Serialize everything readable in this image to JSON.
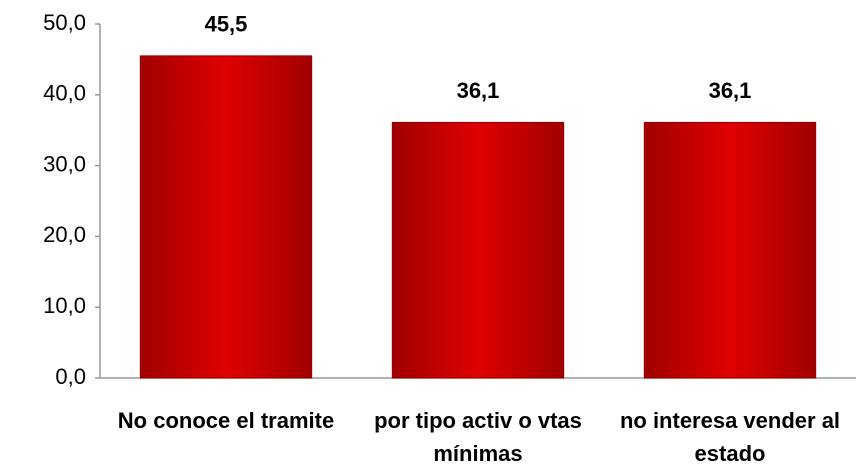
{
  "chart_data": {
    "type": "bar",
    "categories": [
      "No conoce el tramite",
      "por tipo activ o vtas mínimas",
      "no interesa vender al estado"
    ],
    "values": [
      45.5,
      36.1,
      36.1
    ],
    "value_labels": [
      "45,5",
      "36,1",
      "36,1"
    ],
    "color": "#e00000",
    "ylim": [
      0,
      50
    ],
    "yticks": [
      {
        "value": 0,
        "label": "0,0"
      },
      {
        "value": 10,
        "label": "10,0"
      },
      {
        "value": 20,
        "label": "20,0"
      },
      {
        "value": 30,
        "label": "30,0"
      },
      {
        "value": 40,
        "label": "40,0"
      },
      {
        "value": 50,
        "label": "50,0"
      }
    ],
    "grid": false
  }
}
